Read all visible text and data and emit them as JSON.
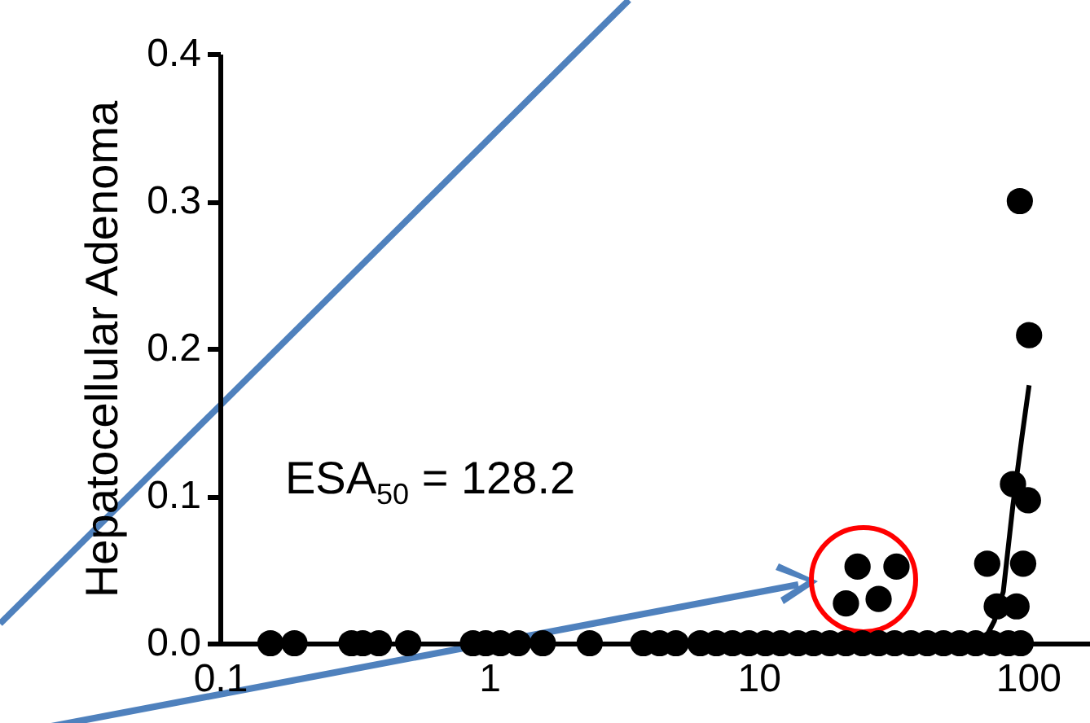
{
  "chart_data": {
    "type": "scatter",
    "ylabel": "Hepatocellular Adenoma",
    "log": "x",
    "xlim": [
      0.1,
      170
    ],
    "xticks": [
      0.1,
      1,
      10,
      100
    ],
    "ylim": [
      0,
      0.4
    ],
    "yticks": [
      {
        "value": 0,
        "label": "0.0"
      },
      {
        "value": 0.1,
        "label": "0.1"
      },
      {
        "value": 0.2,
        "label": "0.2"
      },
      {
        "value": 0.3,
        "label": "0.3"
      },
      {
        "value": 0.4,
        "label": "0.4"
      }
    ],
    "grid": false,
    "marker": "circle",
    "annotations": [
      "ESA$_{50}$ = 128.2"
    ],
    "series": [
      {
        "type": "scatter",
        "color": "#000000",
        "x": [
          0.154,
          0.189,
          0.308,
          0.339,
          0.389,
          0.5,
          0.87,
          0.97,
          1.1,
          1.28,
          1.58,
          2.36,
          3.73,
          4.29,
          4.93,
          6.07,
          6.97,
          8.0,
          9.2,
          10.6,
          12.1,
          14.0,
          16.0,
          18.4,
          21.1,
          24.3,
          27.9,
          32,
          36.8,
          42.3,
          48.6,
          55.8,
          64,
          73.6,
          84.6,
          94,
          23.3,
          32.5,
          21.1,
          27.9,
          93.3,
          101,
          88,
          100,
          70.6,
          96,
          76.6,
          90.7
        ],
        "values": [
          0,
          0,
          0,
          0,
          0,
          0,
          0,
          0,
          0,
          0,
          0,
          0,
          0,
          0,
          0,
          0,
          0,
          0,
          0,
          0,
          0,
          0,
          0,
          0,
          0,
          0,
          0,
          0,
          0,
          0,
          0,
          0,
          0,
          0,
          0,
          0,
          0.052,
          0.052,
          0.027,
          0.03,
          0.3,
          0.209,
          0.108,
          0.097,
          0.054,
          0.054,
          0.025,
          0.025
        ]
      },
      {
        "type": "line",
        "marker": "none",
        "color": "#000000",
        "x": [
          68,
          75,
          81,
          88,
          95,
          101
        ],
        "values": [
          0,
          0.015,
          0.035,
          0.094,
          0.14,
          0.175
        ]
      }
    ]
  }
}
